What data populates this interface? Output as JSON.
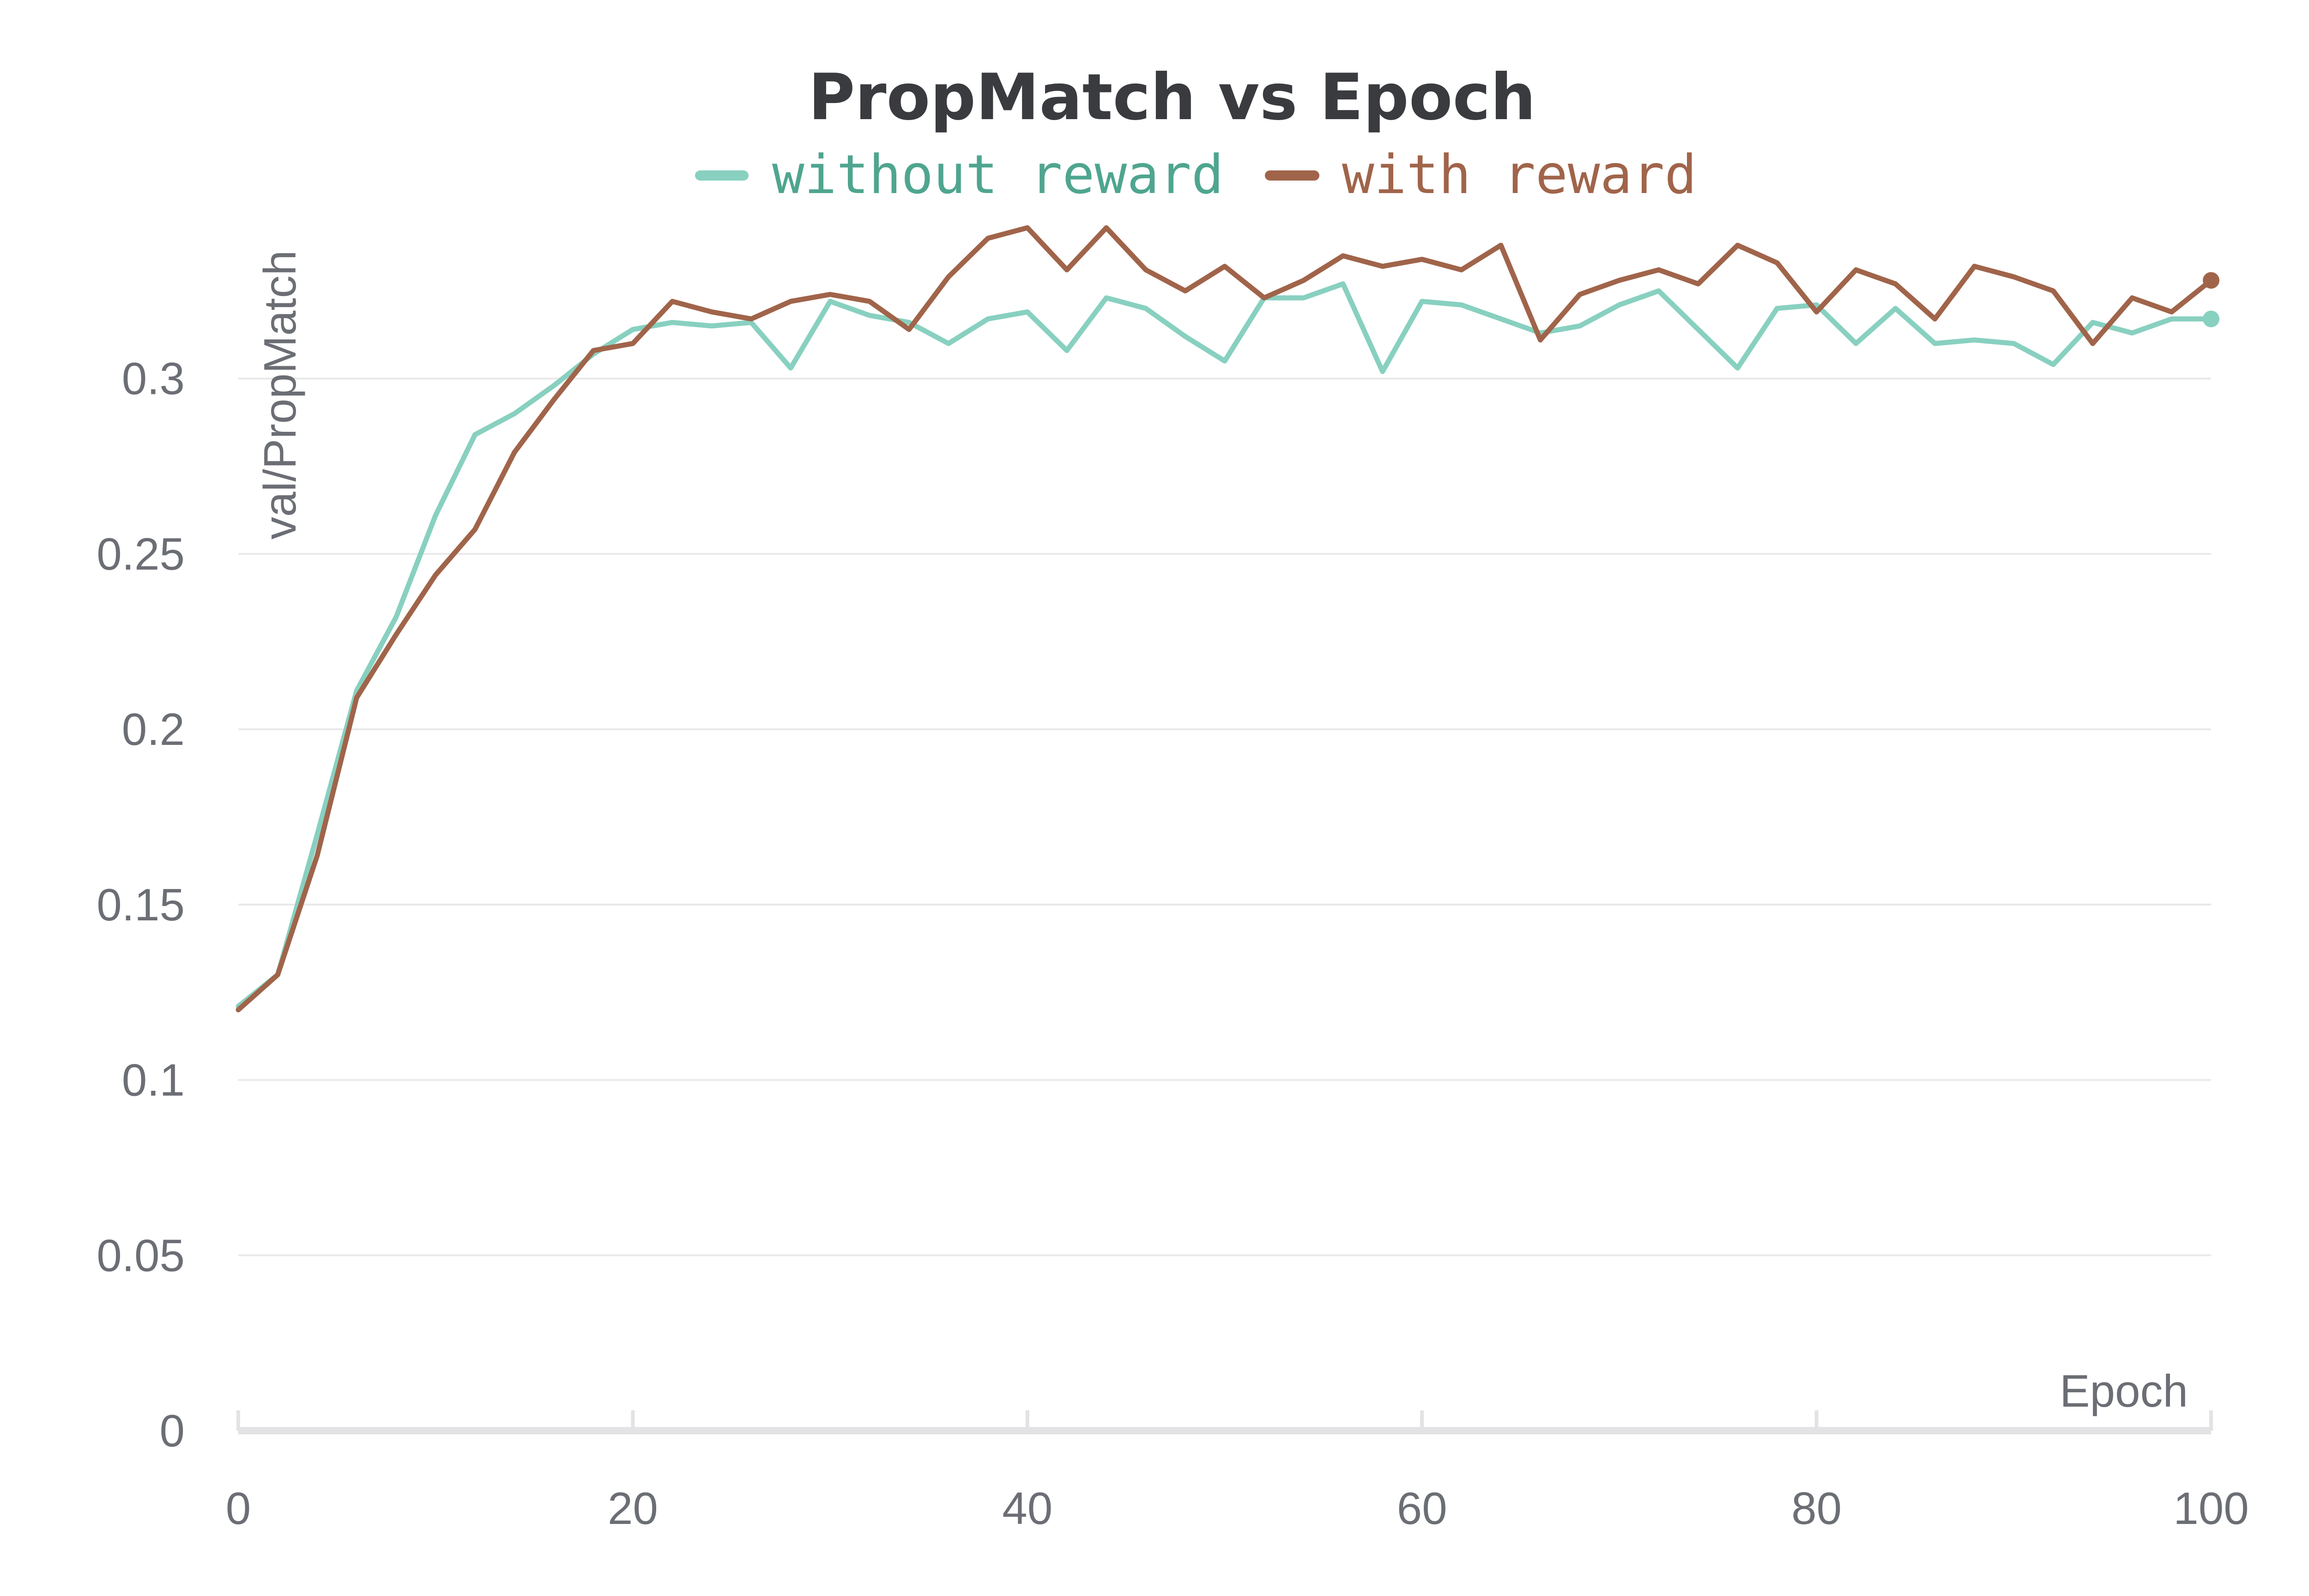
{
  "chart_data": {
    "type": "line",
    "title": "PropMatch vs Epoch",
    "xlabel": "Epoch",
    "ylabel": "val/PropMatch",
    "xlim": [
      0,
      100
    ],
    "ylim": [
      0,
      0.35
    ],
    "xticks": [
      0,
      20,
      40,
      60,
      80,
      100
    ],
    "xtick_labels": [
      "0",
      "20",
      "40",
      "60",
      "80",
      "100"
    ],
    "yticks": [
      0,
      0.05,
      0.1,
      0.15,
      0.2,
      0.25,
      0.3
    ],
    "ytick_labels": [
      "0",
      "0.05",
      "0.1",
      "0.15",
      "0.2",
      "0.25",
      "0.3"
    ],
    "grid": true,
    "legend_position": "top-center",
    "series": [
      {
        "name": "without reward",
        "color": "#88d0c0",
        "legend_text_color": "#4fa58f",
        "x": [
          0,
          2,
          4,
          6,
          8,
          10,
          12,
          14,
          16,
          18,
          20,
          22,
          24,
          26,
          28,
          30,
          32,
          34,
          36,
          38,
          40,
          42,
          44,
          46,
          48,
          50,
          52,
          54,
          56,
          58,
          60,
          62,
          64,
          66,
          68,
          70,
          72,
          74,
          76,
          78,
          80,
          82,
          84,
          86,
          88,
          90,
          92,
          94,
          96,
          98,
          100
        ],
        "values": [
          0.121,
          0.13,
          0.17,
          0.211,
          0.232,
          0.261,
          0.284,
          0.29,
          0.298,
          0.307,
          0.314,
          0.316,
          0.315,
          0.316,
          0.303,
          0.322,
          0.318,
          0.316,
          0.31,
          0.317,
          0.319,
          0.308,
          0.323,
          0.32,
          0.312,
          0.305,
          0.323,
          0.323,
          0.327,
          0.302,
          0.322,
          0.321,
          0.317,
          0.313,
          0.315,
          0.321,
          0.325,
          0.314,
          0.303,
          0.32,
          0.321,
          0.31,
          0.32,
          0.31,
          0.311,
          0.31,
          0.304,
          0.316,
          0.313,
          0.317,
          0.317
        ]
      },
      {
        "name": "with reward",
        "color": "#a0644a",
        "legend_text_color": "#a0644a",
        "x": [
          0,
          2,
          4,
          6,
          8,
          10,
          12,
          14,
          16,
          18,
          20,
          22,
          24,
          26,
          28,
          30,
          32,
          34,
          36,
          38,
          40,
          42,
          44,
          46,
          48,
          50,
          52,
          54,
          56,
          58,
          60,
          62,
          64,
          66,
          68,
          70,
          72,
          74,
          76,
          78,
          80,
          82,
          84,
          86,
          88,
          90,
          92,
          94,
          96,
          98,
          100
        ],
        "values": [
          0.12,
          0.13,
          0.164,
          0.209,
          0.227,
          0.244,
          0.257,
          0.279,
          0.294,
          0.308,
          0.31,
          0.322,
          0.319,
          0.317,
          0.322,
          0.324,
          0.322,
          0.314,
          0.329,
          0.34,
          0.343,
          0.331,
          0.343,
          0.331,
          0.325,
          0.332,
          0.323,
          0.328,
          0.335,
          0.332,
          0.334,
          0.331,
          0.338,
          0.311,
          0.324,
          0.328,
          0.331,
          0.327,
          0.338,
          0.333,
          0.319,
          0.331,
          0.327,
          0.317,
          0.332,
          0.329,
          0.325,
          0.31,
          0.323,
          0.319,
          0.328
        ]
      }
    ]
  }
}
